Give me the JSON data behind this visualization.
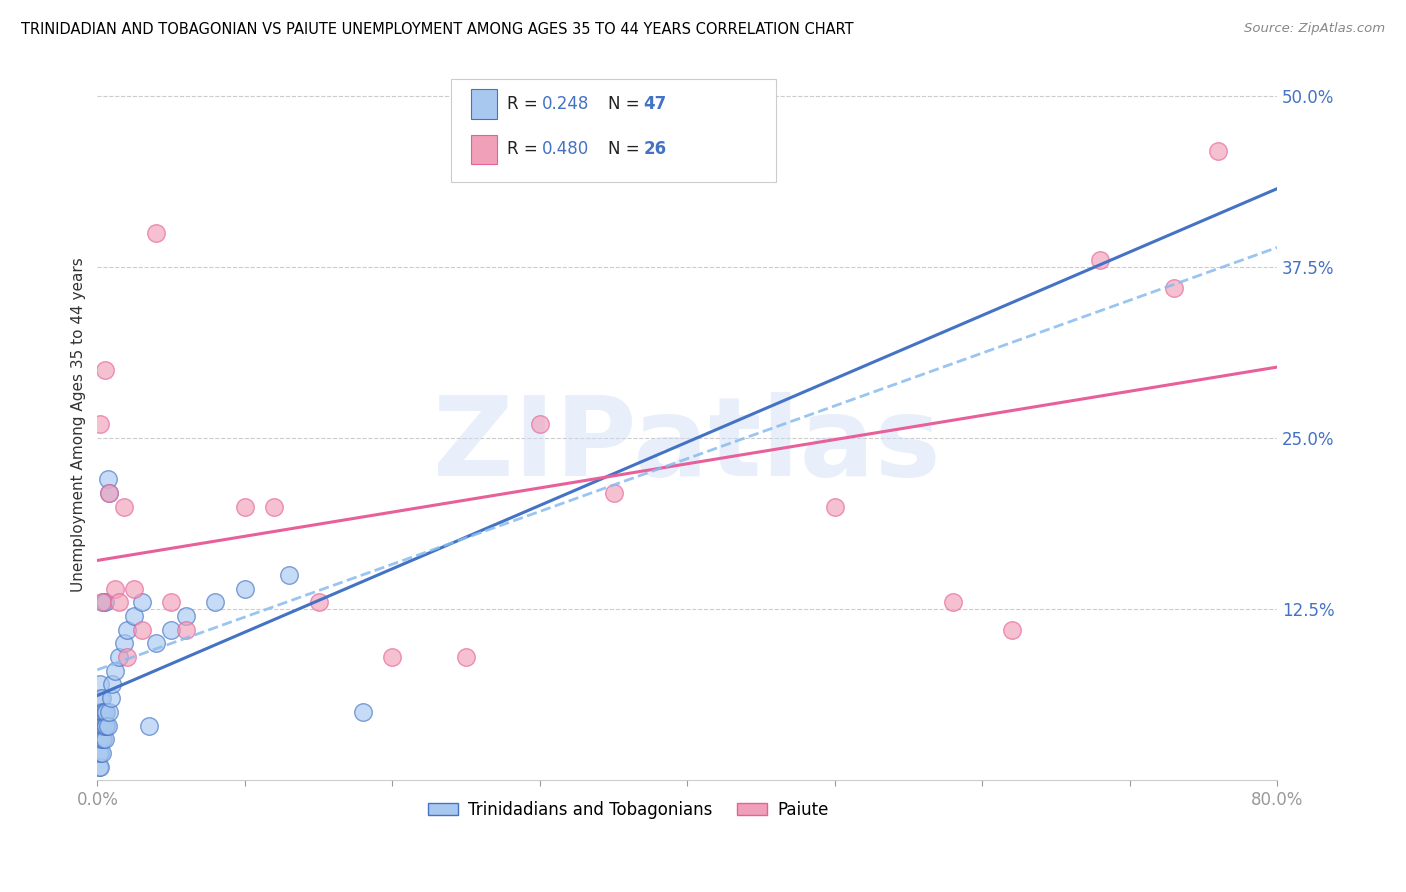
{
  "title": "TRINIDADIAN AND TOBAGONIAN VS PAIUTE UNEMPLOYMENT AMONG AGES 35 TO 44 YEARS CORRELATION CHART",
  "source": "Source: ZipAtlas.com",
  "ylabel": "Unemployment Among Ages 35 to 44 years",
  "xlim": [
    0.0,
    0.8
  ],
  "ylim": [
    0.0,
    0.52
  ],
  "xticks": [
    0.0,
    0.1,
    0.2,
    0.3,
    0.4,
    0.5,
    0.6,
    0.7,
    0.8
  ],
  "xticklabels": [
    "0.0%",
    "",
    "",
    "",
    "",
    "",
    "",
    "",
    "80.0%"
  ],
  "yticks_right": [
    0.0,
    0.125,
    0.25,
    0.375,
    0.5
  ],
  "ytick_right_labels": [
    "",
    "12.5%",
    "25.0%",
    "37.5%",
    "50.0%"
  ],
  "color_blue": "#a8c8f0",
  "color_pink": "#f0a0b8",
  "color_blue_line": "#4472c4",
  "color_pink_line": "#e8609a",
  "color_dashed": "#88bbee",
  "watermark": "ZIPatlas",
  "trinidadian_x": [
    0.001,
    0.001,
    0.001,
    0.001,
    0.001,
    0.002,
    0.002,
    0.002,
    0.002,
    0.002,
    0.002,
    0.002,
    0.003,
    0.003,
    0.003,
    0.003,
    0.003,
    0.004,
    0.004,
    0.004,
    0.004,
    0.005,
    0.005,
    0.005,
    0.005,
    0.006,
    0.006,
    0.007,
    0.007,
    0.008,
    0.008,
    0.009,
    0.01,
    0.012,
    0.015,
    0.018,
    0.02,
    0.025,
    0.03,
    0.035,
    0.04,
    0.05,
    0.06,
    0.08,
    0.1,
    0.13,
    0.18
  ],
  "trinidadian_y": [
    0.01,
    0.02,
    0.03,
    0.04,
    0.05,
    0.01,
    0.02,
    0.03,
    0.04,
    0.05,
    0.06,
    0.07,
    0.02,
    0.03,
    0.04,
    0.05,
    0.06,
    0.03,
    0.04,
    0.05,
    0.13,
    0.03,
    0.04,
    0.05,
    0.13,
    0.04,
    0.05,
    0.04,
    0.22,
    0.05,
    0.21,
    0.06,
    0.07,
    0.08,
    0.09,
    0.1,
    0.11,
    0.12,
    0.13,
    0.04,
    0.1,
    0.11,
    0.12,
    0.13,
    0.14,
    0.15,
    0.05
  ],
  "paiute_x": [
    0.002,
    0.003,
    0.005,
    0.008,
    0.012,
    0.015,
    0.018,
    0.02,
    0.025,
    0.03,
    0.04,
    0.05,
    0.06,
    0.1,
    0.12,
    0.15,
    0.2,
    0.25,
    0.3,
    0.35,
    0.5,
    0.58,
    0.62,
    0.68,
    0.73,
    0.76
  ],
  "paiute_y": [
    0.26,
    0.13,
    0.3,
    0.21,
    0.14,
    0.13,
    0.2,
    0.09,
    0.14,
    0.11,
    0.4,
    0.13,
    0.11,
    0.2,
    0.2,
    0.13,
    0.09,
    0.09,
    0.26,
    0.21,
    0.2,
    0.13,
    0.11,
    0.38,
    0.36,
    0.46
  ]
}
